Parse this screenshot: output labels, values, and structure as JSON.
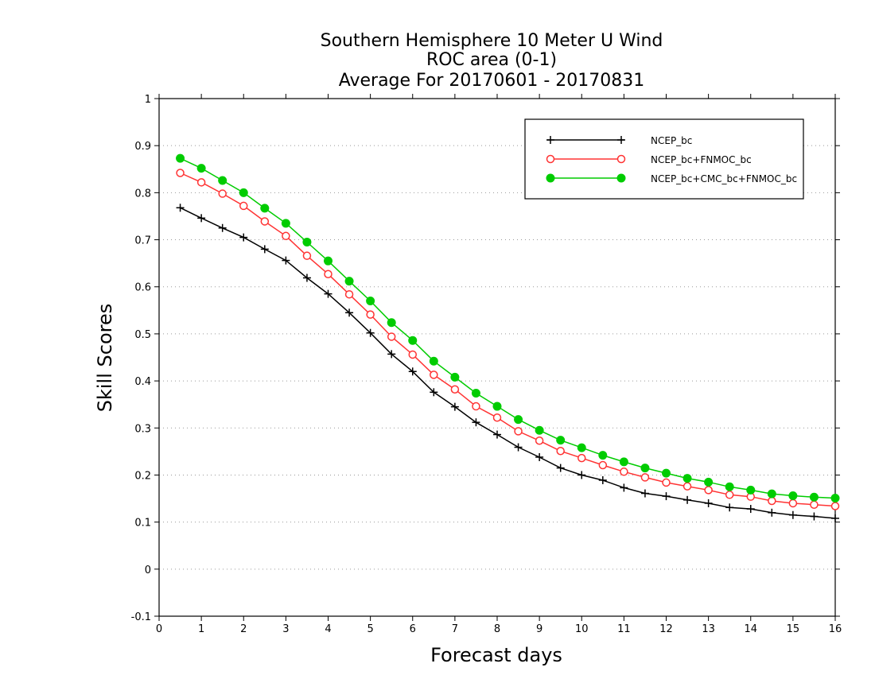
{
  "chart_data": {
    "type": "line",
    "title": [
      "Southern Hemisphere 10 Meter U Wind",
      "ROC area (0-1)",
      "Average For 20170601 - 20170831"
    ],
    "xlabel": "Forecast days",
    "ylabel": "Skill Scores",
    "xlim": [
      0,
      16
    ],
    "ylim": [
      -0.1,
      1
    ],
    "x_ticks": [
      0,
      1,
      2,
      3,
      4,
      5,
      6,
      7,
      8,
      9,
      10,
      11,
      12,
      13,
      14,
      15,
      16
    ],
    "y_ticks": [
      -0.1,
      0,
      0.1,
      0.2,
      0.3,
      0.4,
      0.5,
      0.6,
      0.7,
      0.8,
      0.9,
      1
    ],
    "x_tick_labels": [
      "0",
      "1",
      "2",
      "3",
      "4",
      "5",
      "6",
      "7",
      "8",
      "9",
      "10",
      "11",
      "12",
      "13",
      "14",
      "15",
      "16"
    ],
    "y_tick_labels": [
      "-0.1",
      "0",
      "0.1",
      "0.2",
      "0.3",
      "0.4",
      "0.5",
      "0.6",
      "0.7",
      "0.8",
      "0.9",
      "1"
    ],
    "grid": "horizontal dotted",
    "legend_position": "top-right",
    "x": [
      0.5,
      1,
      1.5,
      2,
      2.5,
      3,
      3.5,
      4,
      4.5,
      5,
      5.5,
      6,
      6.5,
      7,
      7.5,
      8,
      8.5,
      9,
      9.5,
      10,
      10.5,
      11,
      11.5,
      12,
      12.5,
      13,
      13.5,
      14,
      14.5,
      15,
      15.5,
      16
    ],
    "series": [
      {
        "name": "NCEP_bc",
        "color": "#000000",
        "marker": "plus",
        "values": [
          0.768,
          0.746,
          0.725,
          0.705,
          0.68,
          0.656,
          0.619,
          0.585,
          0.545,
          0.502,
          0.457,
          0.42,
          0.376,
          0.345,
          0.312,
          0.286,
          0.259,
          0.238,
          0.215,
          0.2,
          0.189,
          0.173,
          0.161,
          0.155,
          0.147,
          0.14,
          0.131,
          0.128,
          0.12,
          0.115,
          0.112,
          0.108
        ]
      },
      {
        "name": "NCEP_bc+FNMOC_bc",
        "color": "#ff3333",
        "marker": "open-circle",
        "values": [
          0.842,
          0.822,
          0.798,
          0.772,
          0.739,
          0.708,
          0.666,
          0.627,
          0.584,
          0.541,
          0.494,
          0.456,
          0.413,
          0.382,
          0.346,
          0.322,
          0.293,
          0.273,
          0.251,
          0.236,
          0.221,
          0.207,
          0.195,
          0.184,
          0.176,
          0.168,
          0.158,
          0.154,
          0.145,
          0.14,
          0.137,
          0.134
        ]
      },
      {
        "name": "NCEP_bc+CMC_bc+FNMOC_bc",
        "color": "#00cc00",
        "marker": "filled-circle",
        "values": [
          0.873,
          0.852,
          0.826,
          0.8,
          0.767,
          0.735,
          0.695,
          0.655,
          0.612,
          0.57,
          0.524,
          0.486,
          0.442,
          0.408,
          0.374,
          0.346,
          0.318,
          0.295,
          0.274,
          0.258,
          0.242,
          0.228,
          0.215,
          0.204,
          0.193,
          0.185,
          0.175,
          0.168,
          0.16,
          0.156,
          0.153,
          0.151
        ]
      }
    ]
  }
}
